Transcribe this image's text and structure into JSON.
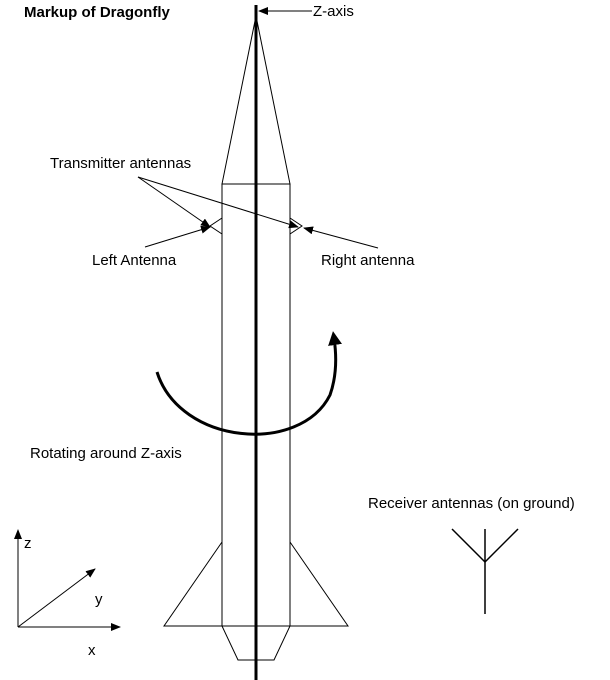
{
  "title": "Markup of Dragonfly",
  "labels": {
    "z_axis": "Z-axis",
    "transmitter": "Transmitter antennas",
    "left_antenna": "Left Antenna",
    "right_antenna": "Right antenna",
    "rotating": "Rotating around Z-axis",
    "receiver": "Receiver antennas (on ground)"
  },
  "axes": {
    "z": "z",
    "y": "y",
    "x": "x"
  },
  "colors": {
    "stroke": "#000000",
    "background": "#ffffff"
  }
}
